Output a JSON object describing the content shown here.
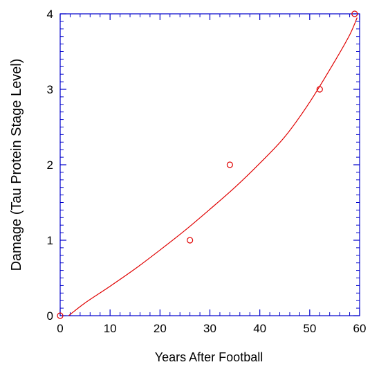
{
  "chart_data": {
    "type": "scatter",
    "title": "",
    "xlabel": "Years After Football",
    "ylabel": "Damage (Tau Protein Stage Level)",
    "xlim": [
      0,
      60
    ],
    "ylim": [
      0,
      4
    ],
    "x_ticks": [
      0,
      10,
      20,
      30,
      40,
      50,
      60
    ],
    "y_ticks": [
      0,
      1,
      2,
      3,
      4
    ],
    "x_tick_labels": [
      "0",
      "10",
      "20",
      "30",
      "40",
      "50",
      "60"
    ],
    "y_tick_labels": [
      "0",
      "1",
      "2",
      "3",
      "4"
    ],
    "grid": false,
    "legend": "none",
    "points": {
      "x": [
        0,
        26,
        34,
        52,
        59
      ],
      "y": [
        0,
        1,
        2,
        3,
        4
      ],
      "marker": "open-circle",
      "color": "#e00000"
    },
    "fit_curve": {
      "x": [
        1.7,
        5,
        10,
        15,
        20,
        25,
        30,
        35,
        40,
        45,
        50,
        55,
        58,
        59.5
      ],
      "y": [
        0,
        0.17,
        0.39,
        0.62,
        0.87,
        1.13,
        1.41,
        1.7,
        2.02,
        2.37,
        2.83,
        3.37,
        3.72,
        3.95
      ],
      "color": "#e00000"
    },
    "axis_color": "#0000cc"
  }
}
